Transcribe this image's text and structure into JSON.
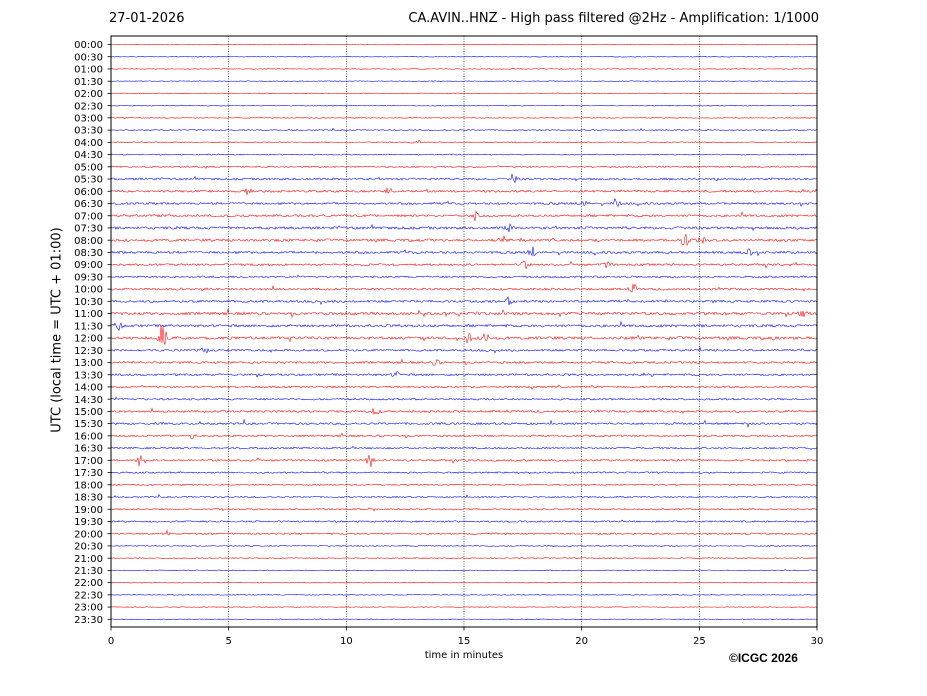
{
  "header": {
    "date": "27-01-2026",
    "title": "CA.AVIN..HNZ - High pass filtered @2Hz - Amplification: 1/1000"
  },
  "copyright": "©ICGC 2026",
  "chart_data": {
    "type": "helicorder",
    "xlabel": "time in minutes",
    "ylabel": "UTC (local time = UTC + 01:00)",
    "xlim": [
      0,
      30
    ],
    "x_ticks": [
      "0",
      "5",
      "10",
      "15",
      "20",
      "25",
      "30"
    ],
    "vertical_grid": [
      5,
      10,
      15,
      20,
      25
    ],
    "row_labels": [
      "00:00",
      "00:30",
      "01:00",
      "01:30",
      "02:00",
      "02:30",
      "03:00",
      "03:30",
      "04:00",
      "04:30",
      "05:00",
      "05:30",
      "06:00",
      "06:30",
      "07:00",
      "07:30",
      "08:00",
      "08:30",
      "09:00",
      "09:30",
      "10:00",
      "10:30",
      "11:00",
      "11:30",
      "12:00",
      "12:30",
      "13:00",
      "13:30",
      "14:00",
      "14:30",
      "15:00",
      "15:30",
      "16:00",
      "16:30",
      "17:00",
      "17:30",
      "18:00",
      "18:30",
      "19:00",
      "19:30",
      "20:00",
      "20:30",
      "21:00",
      "21:30",
      "22:00",
      "22:30",
      "23:00",
      "23:30"
    ],
    "trace_colors": [
      "#ff0000",
      "#0000ff"
    ],
    "row_activity": [
      0.05,
      0.05,
      0.08,
      0.08,
      0.1,
      0.12,
      0.1,
      0.25,
      0.2,
      0.2,
      0.4,
      0.6,
      0.6,
      0.6,
      0.7,
      0.8,
      0.8,
      0.7,
      0.6,
      0.5,
      0.6,
      0.7,
      0.9,
      0.8,
      0.9,
      0.6,
      0.6,
      0.6,
      0.5,
      0.5,
      0.6,
      0.6,
      0.5,
      0.5,
      0.5,
      0.4,
      0.3,
      0.35,
      0.35,
      0.4,
      0.4,
      0.2,
      0.2,
      0.1,
      0.1,
      0.08,
      0.06,
      0.06
    ],
    "events": [
      {
        "row": "04:00",
        "minute": 13.0,
        "amplitude": 0.25
      },
      {
        "row": "05:30",
        "minute": 17.1,
        "amplitude": 0.5
      },
      {
        "row": "06:00",
        "minute": 5.8,
        "amplitude": 0.45
      },
      {
        "row": "06:00",
        "minute": 11.8,
        "amplitude": 0.35
      },
      {
        "row": "06:30",
        "minute": 20.1,
        "amplitude": 0.4
      },
      {
        "row": "06:30",
        "minute": 21.5,
        "amplitude": 0.6
      },
      {
        "row": "07:00",
        "minute": 15.5,
        "amplitude": 0.55
      },
      {
        "row": "07:30",
        "minute": 16.9,
        "amplitude": 0.4
      },
      {
        "row": "08:00",
        "minute": 16.6,
        "amplitude": 0.55
      },
      {
        "row": "08:00",
        "minute": 24.4,
        "amplitude": 0.75
      },
      {
        "row": "08:00",
        "minute": 25.1,
        "amplitude": 0.35
      },
      {
        "row": "08:30",
        "minute": 17.9,
        "amplitude": 0.55
      },
      {
        "row": "08:30",
        "minute": 27.1,
        "amplitude": 0.45
      },
      {
        "row": "09:00",
        "minute": 17.6,
        "amplitude": 0.45
      },
      {
        "row": "09:00",
        "minute": 21.1,
        "amplitude": 0.45
      },
      {
        "row": "10:00",
        "minute": 22.2,
        "amplitude": 0.45
      },
      {
        "row": "10:30",
        "minute": 16.9,
        "amplitude": 0.5
      },
      {
        "row": "11:00",
        "minute": 29.4,
        "amplitude": 0.55
      },
      {
        "row": "11:30",
        "minute": 0.3,
        "amplitude": 0.5
      },
      {
        "row": "12:00",
        "minute": 2.2,
        "amplitude": 1.9
      },
      {
        "row": "12:00",
        "minute": 15.9,
        "amplitude": 0.9
      },
      {
        "row": "12:00",
        "minute": 15.2,
        "amplitude": 0.45
      },
      {
        "row": "12:30",
        "minute": 4.0,
        "amplitude": 0.3
      },
      {
        "row": "13:00",
        "minute": 13.8,
        "amplitude": 0.35
      },
      {
        "row": "13:30",
        "minute": 12.1,
        "amplitude": 0.35
      },
      {
        "row": "15:00",
        "minute": 11.2,
        "amplitude": 0.5
      },
      {
        "row": "16:00",
        "minute": 3.5,
        "amplitude": 0.3
      },
      {
        "row": "17:00",
        "minute": 1.3,
        "amplitude": 1.0
      },
      {
        "row": "17:00",
        "minute": 11.0,
        "amplitude": 0.9
      },
      {
        "row": "20:00",
        "minute": 2.4,
        "amplitude": 0.3
      }
    ]
  }
}
